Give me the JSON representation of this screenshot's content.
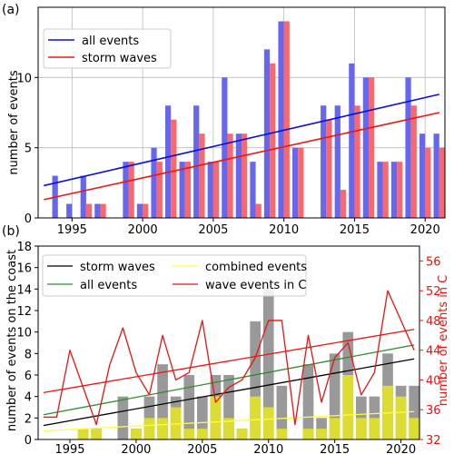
{
  "chart_data": [
    {
      "panel_label": "(a)",
      "type": "bar",
      "ylabel": "number of events",
      "xlim": [
        1992.6,
        2021.4
      ],
      "ylim": [
        0,
        15
      ],
      "xticks": [
        1995,
        2000,
        2005,
        2010,
        2015,
        2020
      ],
      "yticks": [
        0,
        5,
        10
      ],
      "grid": true,
      "legend_position": "top-left",
      "x": [
        1994,
        1995,
        1996,
        1997,
        1999,
        2000,
        2001,
        2002,
        2003,
        2004,
        2005,
        2006,
        2007,
        2008,
        2009,
        2010,
        2011,
        2013,
        2014,
        2015,
        2016,
        2017,
        2018,
        2019,
        2020,
        2021
      ],
      "series": [
        {
          "name": "all events",
          "color": "#6666ee",
          "values": [
            3,
            1,
            3,
            1,
            4,
            1,
            5,
            8,
            4,
            8,
            4,
            10,
            6,
            4,
            12,
            14,
            5,
            8,
            8,
            11,
            10,
            4,
            4,
            10,
            6,
            6
          ]
        },
        {
          "name": "storm waves",
          "color": "#f8686c",
          "values": [
            0,
            0,
            1,
            1,
            4,
            1,
            4,
            7,
            4,
            6,
            4,
            6,
            6,
            1,
            11,
            14,
            5,
            7,
            2,
            8,
            10,
            4,
            4,
            8,
            5,
            5
          ]
        }
      ],
      "trend_lines": [
        {
          "series": "all events",
          "color": "#1010cc",
          "x": [
            1993,
            2021
          ],
          "y": [
            2.3,
            8.8
          ]
        },
        {
          "series": "storm waves",
          "color": "#e81818",
          "x": [
            1993,
            2021
          ],
          "y": [
            1.3,
            7.5
          ]
        }
      ]
    },
    {
      "panel_label": "(b)",
      "type": "bar",
      "ylabel": "number of events on the coast",
      "ylabel_right": "number of events in C",
      "xlim": [
        1992.6,
        2021.4
      ],
      "ylim": [
        0,
        18
      ],
      "ylim_right": [
        32,
        58
      ],
      "xticks": [
        1995,
        2000,
        2005,
        2010,
        2015,
        2020
      ],
      "yticks": [
        0,
        2,
        4,
        6,
        8,
        10,
        12,
        14,
        16,
        18
      ],
      "yticks_right": [
        32,
        36,
        40,
        44,
        48,
        52,
        56
      ],
      "grid": false,
      "legend_position": "top",
      "x": [
        1994,
        1995,
        1996,
        1997,
        1999,
        2000,
        2001,
        2002,
        2003,
        2004,
        2005,
        2006,
        2007,
        2008,
        2009,
        2010,
        2011,
        2013,
        2014,
        2015,
        2016,
        2017,
        2018,
        2019,
        2020,
        2021
      ],
      "bar_series": [
        {
          "role": "total",
          "color": "#999999",
          "values": [
            0,
            0,
            1,
            1,
            4,
            1,
            4,
            7,
            4,
            6,
            4,
            6,
            6,
            1,
            11,
            14,
            5,
            7,
            2,
            8,
            10,
            4,
            4,
            8,
            5,
            5
          ]
        },
        {
          "role": "combined",
          "color": "#dcdc32",
          "values": [
            0,
            0,
            1,
            1,
            0,
            1,
            2,
            2,
            3,
            1,
            1,
            4,
            2,
            1,
            4,
            3,
            1,
            1,
            1,
            2,
            6,
            2,
            2,
            5,
            4,
            2
          ]
        }
      ],
      "legend": [
        {
          "name": "storm waves",
          "color": "#000000"
        },
        {
          "name": "combined events",
          "color": "#ffff44"
        },
        {
          "name": "all events",
          "color": "#2e8b2e"
        },
        {
          "name": "wave events in C",
          "color": "#ee1111"
        }
      ],
      "trend_lines": [
        {
          "series": "storm waves",
          "color": "#000000",
          "axis": "left",
          "x": [
            1993,
            2021
          ],
          "y": [
            1.3,
            7.5
          ]
        },
        {
          "series": "all events",
          "color": "#2e8b2e",
          "axis": "left",
          "x": [
            1993,
            2021
          ],
          "y": [
            2.3,
            8.8
          ]
        },
        {
          "series": "combined events",
          "color": "#ffff44",
          "axis": "left",
          "x": [
            1993,
            2021
          ],
          "y": [
            0.8,
            2.6
          ]
        },
        {
          "series": "wave events in C",
          "color": "#ee1111",
          "axis": "right",
          "x": [
            1993,
            2021
          ],
          "y": [
            38.3,
            46.8
          ]
        }
      ],
      "line_series": {
        "name": "wave events in C",
        "color": "#ee1111",
        "axis": "right",
        "x": [
          1993,
          1994,
          1995,
          1996,
          1997,
          1998,
          1999,
          2000,
          2001,
          2002,
          2003,
          2004,
          2005,
          2006,
          2007,
          2008,
          2009,
          2010,
          2011,
          2012,
          2013,
          2014,
          2015,
          2016,
          2017,
          2018,
          2019,
          2020,
          2021
        ],
        "y": [
          35,
          35,
          44,
          39,
          34,
          42,
          47,
          41,
          38,
          46,
          40,
          41,
          48,
          37,
          39,
          40,
          43,
          48,
          48,
          34,
          46,
          37,
          43,
          45,
          38,
          41,
          52,
          48,
          44
        ]
      }
    }
  ]
}
